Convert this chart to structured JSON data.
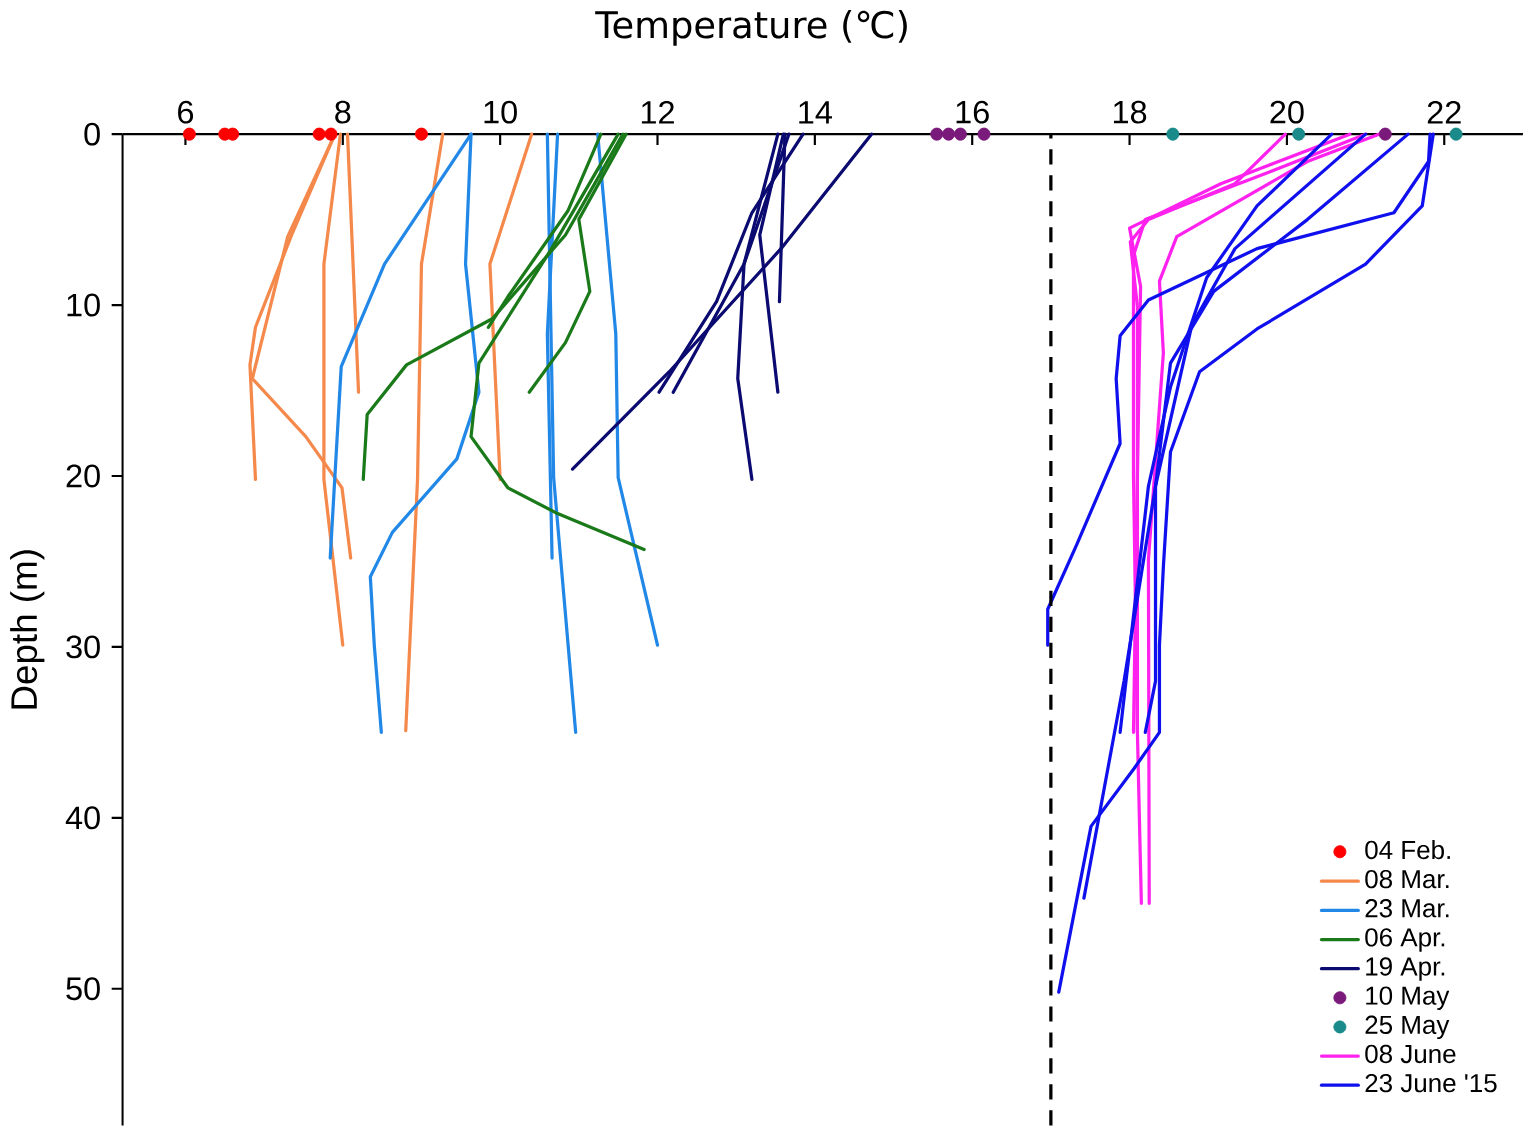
{
  "chart_data": {
    "type": "line",
    "xlabel": "Temperature (℃)",
    "ylabel": "Depth (m)",
    "xlim": [
      5.2,
      23
    ],
    "ylim": [
      58,
      0
    ],
    "xticks": [
      6,
      8,
      10,
      12,
      14,
      16,
      18,
      20,
      22
    ],
    "yticks": [
      0,
      10,
      20,
      30,
      40,
      50
    ],
    "legend": "bottom right",
    "ref_lines": [
      {
        "axis": "x",
        "value": 17,
        "color": "#000000",
        "line_style": "dashed"
      }
    ],
    "series": [
      {
        "name": "04 Feb.",
        "type": "scatter",
        "color": "#ff0000",
        "x": [
          6.05,
          6.5,
          6.6,
          7.7,
          7.85,
          9.0
        ],
        "values": [
          0,
          0,
          0,
          0,
          0,
          0
        ]
      },
      {
        "name": "08 Mar.",
        "color": "#f4894b",
        "x": [
          7.9,
          7.35,
          6.89,
          6.82,
          6.89
        ],
        "values": [
          0,
          5.9,
          11.3,
          13.5,
          20.2
        ]
      },
      {
        "color": "#f4894b",
        "x": [
          7.9,
          7.3,
          6.85,
          7.53,
          7.99,
          8.1
        ],
        "values": [
          0,
          6,
          14.3,
          17.7,
          20.7,
          24.8
        ]
      },
      {
        "color": "#f4894b",
        "x": [
          7.97,
          7.76,
          7.76,
          8.0
        ],
        "values": [
          0,
          7.6,
          20.2,
          29.9
        ]
      },
      {
        "color": "#f4894b",
        "x": [
          8.06,
          8.2
        ],
        "values": [
          0,
          15.1
        ]
      },
      {
        "color": "#f4894b",
        "x": [
          9.27,
          9.0,
          8.95,
          8.8
        ],
        "values": [
          0,
          7.6,
          20.2,
          34.9
        ]
      },
      {
        "color": "#f4894b",
        "x": [
          10.4,
          9.87,
          10.0
        ],
        "values": [
          0,
          7.6,
          20.2
        ]
      },
      {
        "name": "23 Mar.",
        "color": "#2288e8",
        "x": [
          9.63,
          8.53,
          7.98,
          7.84
        ],
        "values": [
          0,
          7.6,
          13.6,
          24.8
        ]
      },
      {
        "color": "#2288e8",
        "x": [
          9.63,
          9.56,
          9.73,
          9.45,
          8.63,
          8.35,
          8.4,
          8.49
        ],
        "values": [
          0,
          7.6,
          15.1,
          19.0,
          23.3,
          25.9,
          29.9,
          35.0
        ]
      },
      {
        "color": "#2288e8",
        "x": [
          10.6,
          10.68,
          10.96
        ],
        "values": [
          0,
          20.1,
          35.0
        ]
      },
      {
        "color": "#2288e8",
        "x": [
          10.73,
          10.6,
          10.66
        ],
        "values": [
          0,
          11.7,
          24.8
        ]
      },
      {
        "color": "#2288e8",
        "x": [
          11.24,
          11.47,
          11.5,
          12.0
        ],
        "values": [
          0,
          11.7,
          20.1,
          29.9
        ]
      },
      {
        "name": "06 Apr.",
        "color": "#1a7a1a",
        "x": [
          11.56,
          10.83,
          9.9,
          8.81,
          8.31,
          8.26
        ],
        "values": [
          0,
          5.9,
          10.8,
          13.5,
          16.4,
          20.2
        ]
      },
      {
        "color": "#1a7a1a",
        "x": [
          11.28,
          10.86,
          10.1,
          9.85
        ],
        "values": [
          0,
          4.5,
          9.5,
          11.3
        ]
      },
      {
        "color": "#1a7a1a",
        "x": [
          11.5,
          10.64,
          9.73,
          9.63,
          10.1,
          10.73,
          11.83
        ],
        "values": [
          0,
          6.8,
          13.4,
          17.7,
          20.7,
          22.2,
          24.3
        ]
      },
      {
        "color": "#1a7a1a",
        "x": [
          11.6,
          11.0,
          11.14,
          10.83,
          10.37
        ],
        "values": [
          0,
          5.0,
          9.2,
          12.2,
          15.1
        ]
      },
      {
        "name": "19 Apr.",
        "color": "#0a0a70",
        "x": [
          14.72,
          13.57,
          12.15,
          10.92
        ],
        "values": [
          0,
          6.7,
          13.9,
          19.6
        ]
      },
      {
        "color": "#0a0a70",
        "x": [
          13.85,
          13.2,
          12.75,
          12.02
        ],
        "values": [
          0,
          4.6,
          9.8,
          15.1
        ]
      },
      {
        "color": "#0a0a70",
        "x": [
          13.67,
          13.1,
          12.2
        ],
        "values": [
          0,
          7.6,
          15.1
        ]
      },
      {
        "color": "#0a0a70",
        "x": [
          13.53,
          13.1,
          13.02,
          13.2
        ],
        "values": [
          0,
          7.6,
          14.3,
          20.2
        ]
      },
      {
        "color": "#0a0a70",
        "x": [
          13.6,
          13.3,
          13.53
        ],
        "values": [
          0,
          5.9,
          15.1
        ]
      },
      {
        "color": "#0a0a70",
        "x": [
          13.62,
          13.55
        ],
        "values": [
          0,
          9.8
        ]
      },
      {
        "name": "10 May",
        "type": "scatter",
        "color": "#7a1a7a",
        "x": [
          15.55,
          15.7,
          15.85,
          16.15,
          21.25
        ],
        "values": [
          0,
          0,
          0,
          0,
          0
        ]
      },
      {
        "name": "25 May",
        "type": "scatter",
        "color": "#1a8a8a",
        "x": [
          18.55,
          20.15,
          22.15
        ],
        "values": [
          0,
          0,
          0
        ]
      },
      {
        "name": "08 June",
        "color": "#ff22ee",
        "x": [
          19.98,
          19.34,
          18.24,
          18.01,
          18.1,
          18.1
        ],
        "values": [
          0,
          2.9,
          5.0,
          6.3,
          10.1,
          35
        ]
      },
      {
        "color": "#ff22ee",
        "x": [
          21.0,
          19.62,
          18.2,
          18.05,
          18.05,
          18.1,
          18.15
        ],
        "values": [
          0,
          2.5,
          5.0,
          7.1,
          20,
          35,
          45
        ]
      },
      {
        "color": "#ff22ee",
        "x": [
          21.17,
          20.26,
          18.6,
          18.38,
          18.43,
          18.24,
          18.25
        ],
        "values": [
          0,
          1.6,
          6.0,
          8.6,
          12.8,
          24.9,
          45
        ]
      },
      {
        "color": "#ff22ee",
        "x": [
          20.8,
          19.16,
          18.0,
          18.14,
          18.1,
          18.05
        ],
        "values": [
          0,
          2.9,
          5.5,
          8.9,
          20,
          35
        ]
      },
      {
        "name": "23 June '15",
        "color": "#1010ee",
        "x": [
          21.82,
          21.8,
          21.36,
          19.62,
          18.24,
          17.88,
          17.83,
          17.88,
          17.33,
          16.96,
          16.96
        ],
        "values": [
          0,
          1.6,
          4.6,
          6.7,
          9.7,
          11.8,
          14.3,
          18.1,
          24.0,
          27.8,
          29.9
        ]
      },
      {
        "color": "#1010ee",
        "x": [
          21.86,
          21.72,
          21.0,
          19.62,
          18.89,
          18.52,
          18.43,
          18.38,
          18.38,
          18.06,
          17.51,
          17.1
        ],
        "values": [
          0,
          4.2,
          7.6,
          11.4,
          13.9,
          18.6,
          25.3,
          29.9,
          35,
          37.1,
          40.5,
          50.2
        ]
      },
      {
        "color": "#1010ee",
        "x": [
          20.57,
          19.62,
          18.98,
          18.52,
          18.24,
          17.88
        ],
        "values": [
          0,
          4.2,
          8.4,
          14.8,
          20.6,
          35
        ]
      },
      {
        "color": "#1010ee",
        "x": [
          21.0,
          19.34,
          18.79,
          18.33,
          17.93,
          17.42
        ],
        "values": [
          0,
          6.7,
          11.2,
          20.6,
          32.0,
          44.7
        ]
      },
      {
        "color": "#1010ee",
        "x": [
          21.54,
          20.26,
          19.07,
          18.52,
          18.33,
          18.33,
          18.2
        ],
        "values": [
          0,
          5.0,
          9.2,
          13.4,
          20.6,
          32,
          35
        ]
      }
    ]
  }
}
